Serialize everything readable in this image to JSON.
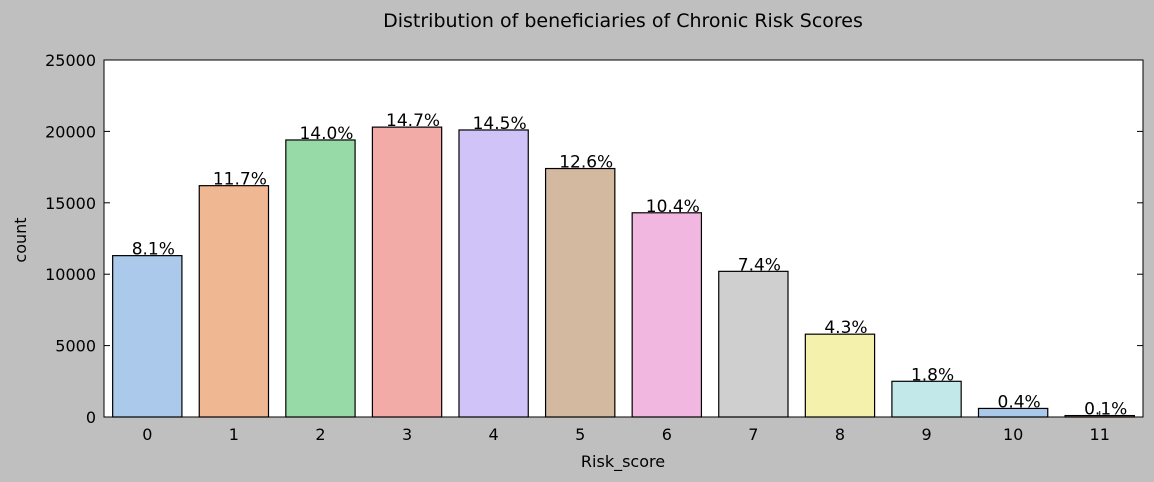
{
  "chart_data": {
    "type": "bar",
    "title": "Distribution of beneficiaries of Chronic Risk Scores",
    "x_label": "Risk_score",
    "y_label": "count",
    "categories": [
      "0",
      "1",
      "2",
      "3",
      "4",
      "5",
      "6",
      "7",
      "8",
      "9",
      "10",
      "11"
    ],
    "values": [
      11300,
      16200,
      19400,
      20300,
      20100,
      17400,
      14300,
      10200,
      5800,
      2500,
      600,
      100
    ],
    "annotations": [
      "8.1%",
      "11.7%",
      "14.0%",
      "14.7%",
      "14.5%",
      "12.6%",
      "10.4%",
      "7.4%",
      "4.3%",
      "1.8%",
      "0.4%",
      "0.1%"
    ],
    "colors": [
      "#abc9ea",
      "#efb792",
      "#98daa7",
      "#f3aba8",
      "#d0c3f7",
      "#d4b9a1",
      "#f1b7e0",
      "#cfcfcf",
      "#f3f1ab",
      "#c2e8e9",
      "#abc9ea",
      "#efb792"
    ],
    "ylim": [
      0,
      25000
    ],
    "yticks": [
      0,
      5000,
      10000,
      15000,
      20000,
      25000
    ]
  }
}
